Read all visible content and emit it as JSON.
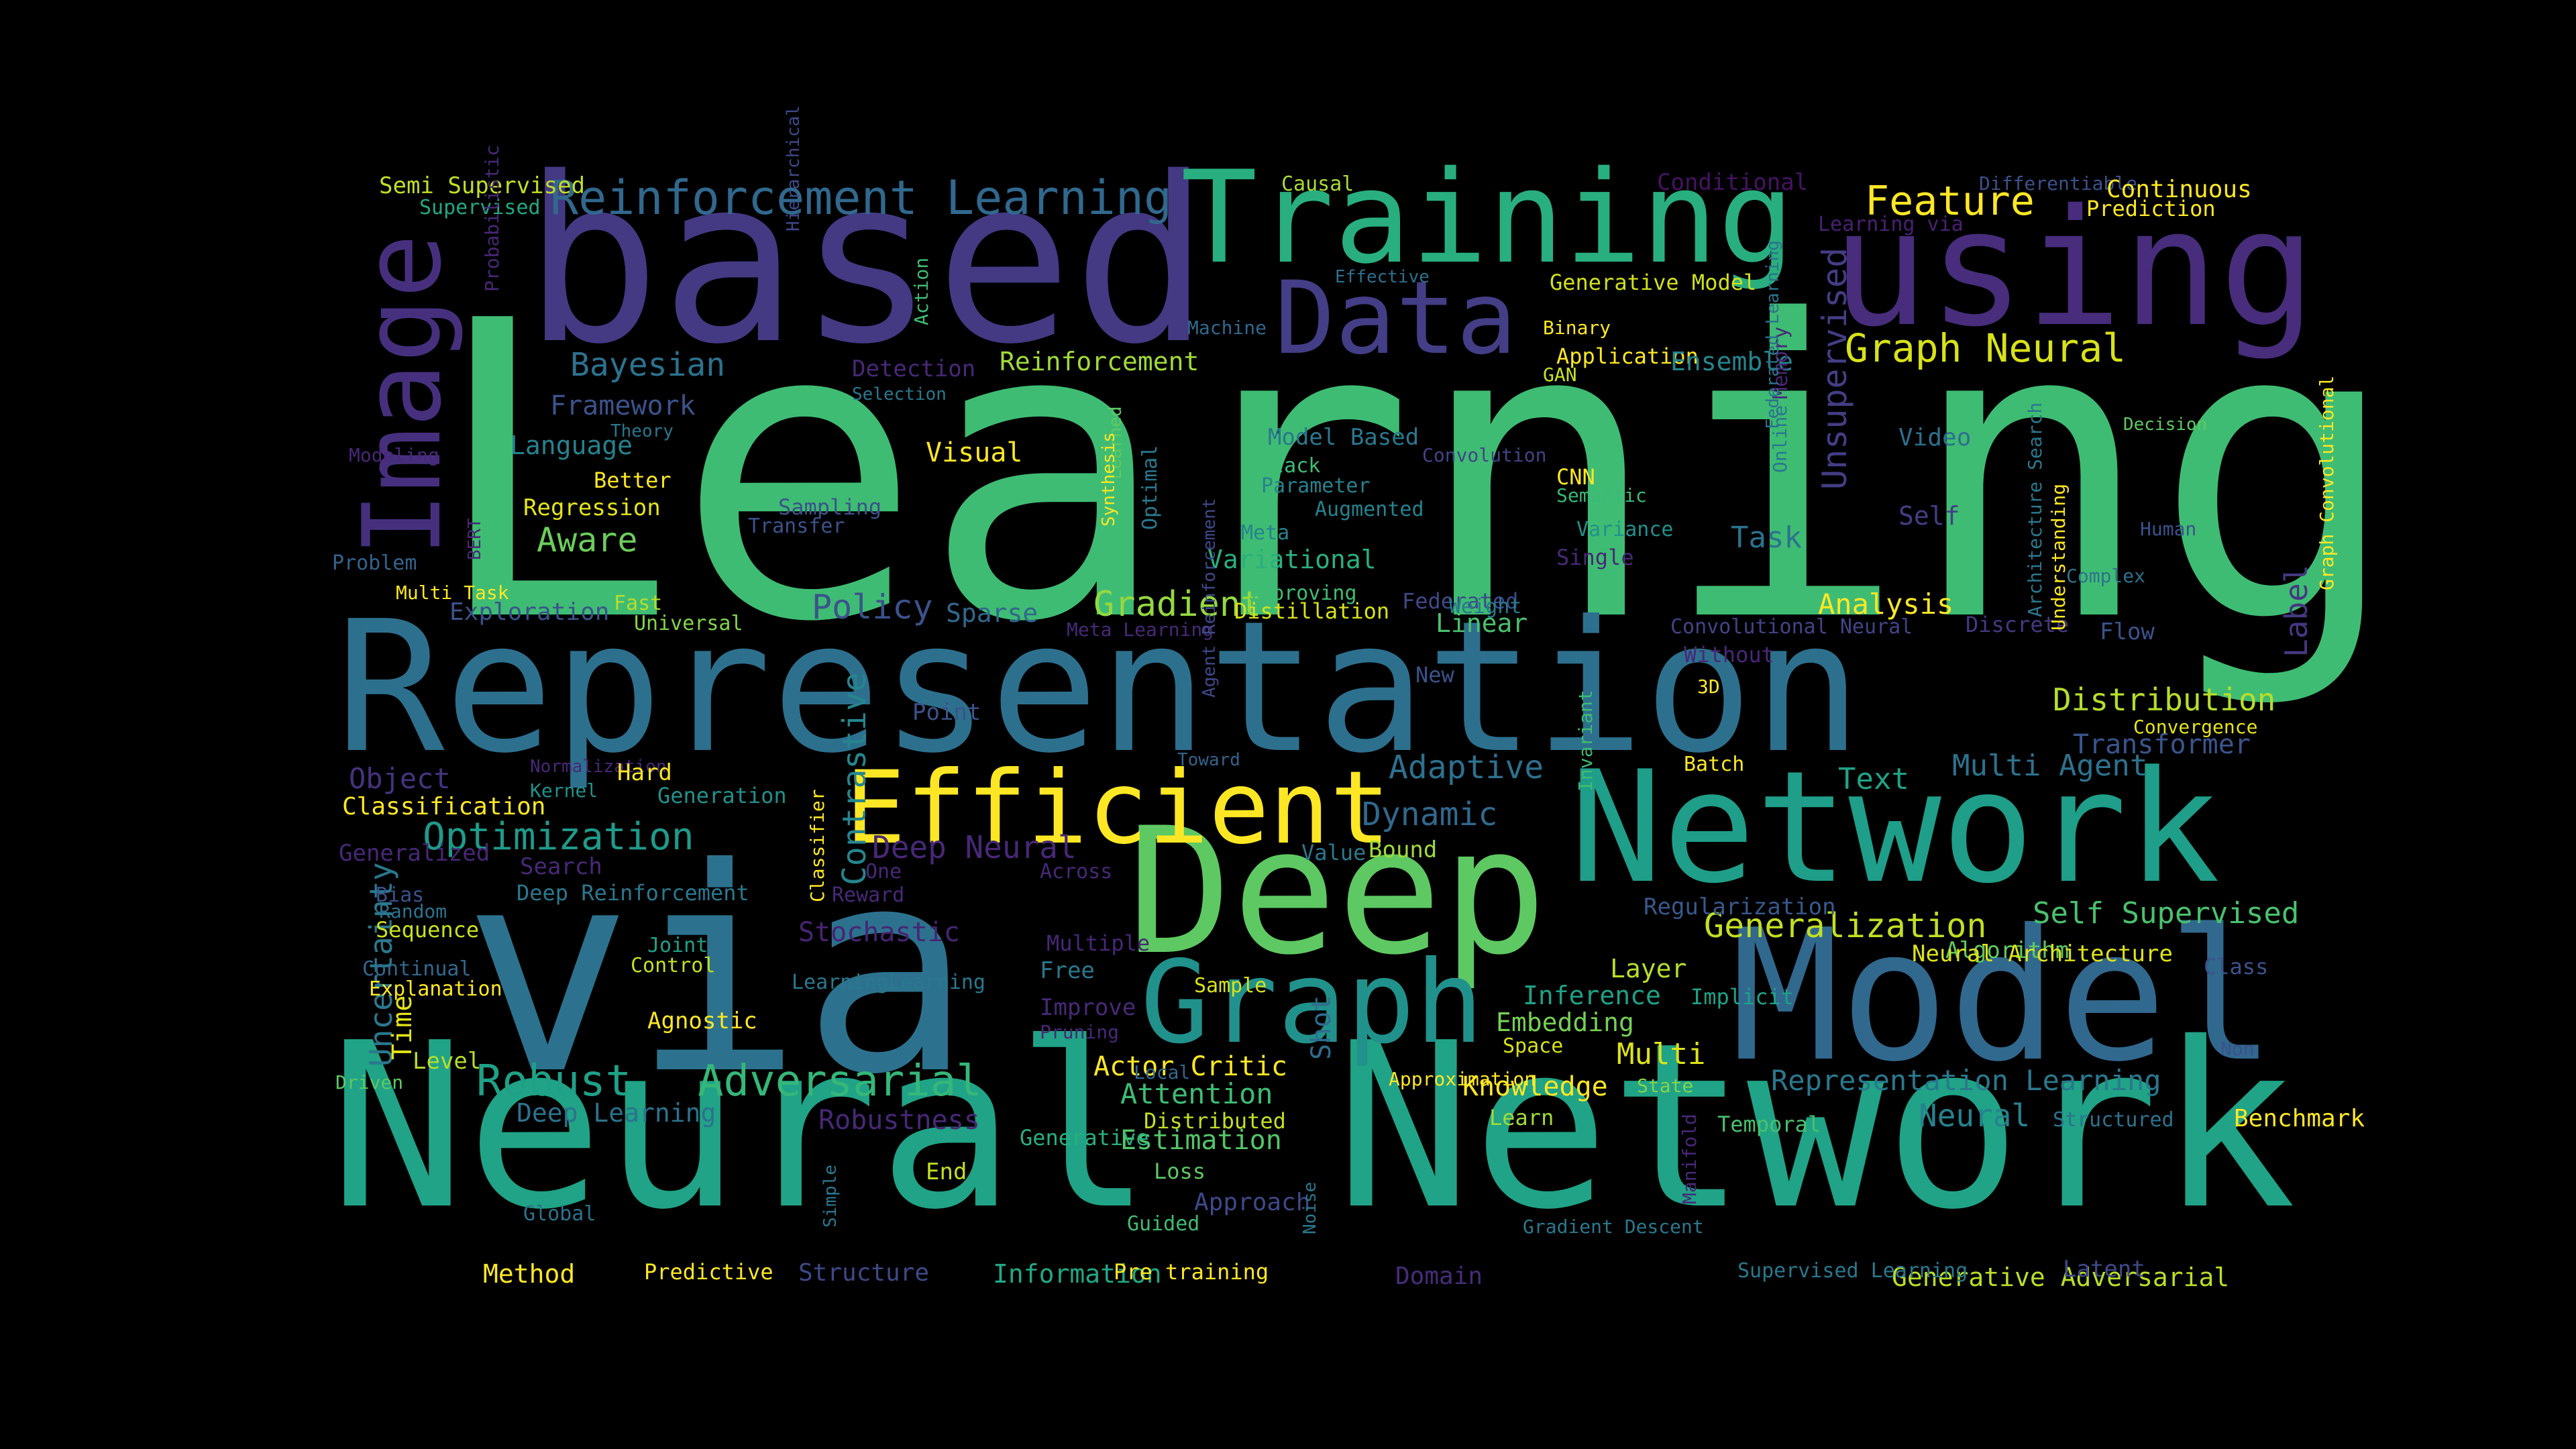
{
  "colors": {
    "background": "#000000",
    "palette": [
      "#440154",
      "#46327e",
      "#365c8d",
      "#277f8e",
      "#1fa187",
      "#4ac16d",
      "#a0da39",
      "#fde725"
    ]
  },
  "words": [
    {
      "text": "Learning",
      "color": "#3fbc73",
      "vertical": false
    },
    {
      "text": "Representation",
      "color": "#2d708e",
      "vertical": false
    },
    {
      "text": "Neural",
      "color": "#20a386",
      "vertical": false
    },
    {
      "text": "Network",
      "color": "#20a386",
      "vertical": false
    },
    {
      "text": "via",
      "color": "#2c728e",
      "vertical": false
    },
    {
      "text": "based",
      "color": "#443983",
      "vertical": false
    },
    {
      "text": "Deep",
      "color": "#5ec962",
      "vertical": false
    },
    {
      "text": "Network",
      "color": "#1f9e89",
      "vertical": false
    },
    {
      "text": "Model",
      "color": "#31688e",
      "vertical": false
    },
    {
      "text": "using",
      "color": "#472d7b",
      "vertical": false
    },
    {
      "text": "Training",
      "color": "#29af7f",
      "vertical": false
    },
    {
      "text": "Graph",
      "color": "#21918c",
      "vertical": false
    },
    {
      "text": "Image",
      "color": "#46307e",
      "vertical": true
    },
    {
      "text": "Efficient",
      "color": "#fde725",
      "vertical": false
    },
    {
      "text": "Data",
      "color": "#433e85",
      "vertical": false
    },
    {
      "text": "Reinforcement Learning",
      "color": "#31688e",
      "vertical": false
    },
    {
      "text": "Graph Neural",
      "color": "#d8e219",
      "vertical": false
    },
    {
      "text": "Feature",
      "color": "#fde725",
      "vertical": false
    },
    {
      "text": "Adversarial",
      "color": "#35b779",
      "vertical": false
    },
    {
      "text": "Robust",
      "color": "#1fa187",
      "vertical": false
    },
    {
      "text": "Optimization",
      "color": "#1f9a8a",
      "vertical": false
    },
    {
      "text": "Generalization",
      "color": "#c2df23",
      "vertical": false
    },
    {
      "text": "Distribution",
      "color": "#b5de2b",
      "vertical": false
    },
    {
      "text": "Self Supervised",
      "color": "#4ac16d",
      "vertical": false
    },
    {
      "text": "Gradient",
      "color": "#95d840",
      "vertical": false
    },
    {
      "text": "Policy",
      "color": "#3b528b",
      "vertical": false
    },
    {
      "text": "Bayesian",
      "color": "#2c728e",
      "vertical": false
    },
    {
      "text": "Aware",
      "color": "#6ccd5a",
      "vertical": false
    },
    {
      "text": "Unsupervised",
      "color": "#433e85",
      "vertical": true
    },
    {
      "text": "Analysis",
      "color": "#fde725",
      "vertical": false
    },
    {
      "text": "Multi Agent",
      "color": "#2c728e",
      "vertical": false
    },
    {
      "text": "Transformer",
      "color": "#39558c",
      "vertical": false
    },
    {
      "text": "Adaptive",
      "color": "#2d708e",
      "vertical": false
    },
    {
      "text": "Dynamic",
      "color": "#31688e",
      "vertical": false
    },
    {
      "text": "Contrastive",
      "color": "#25858e",
      "vertical": true
    },
    {
      "text": "Deep Neural",
      "color": "#482878",
      "vertical": false
    },
    {
      "text": "Label",
      "color": "#453781",
      "vertical": true
    },
    {
      "text": "Video",
      "color": "#2d708e",
      "vertical": false
    },
    {
      "text": "Self",
      "color": "#433e85",
      "vertical": false
    },
    {
      "text": "Task",
      "color": "#2c728e",
      "vertical": false
    },
    {
      "text": "Text",
      "color": "#20a386",
      "vertical": false
    },
    {
      "text": "Representation Learning",
      "color": "#2a788e",
      "vertical": false
    },
    {
      "text": "Neural",
      "color": "#26828e",
      "vertical": false
    },
    {
      "text": "Multi",
      "color": "#dde318",
      "vertical": false
    },
    {
      "text": "Knowledge",
      "color": "#fde725",
      "vertical": false
    },
    {
      "text": "Attention",
      "color": "#3dbc74",
      "vertical": false
    },
    {
      "text": "Estimation",
      "color": "#54c568",
      "vertical": false
    },
    {
      "text": "Deep Learning",
      "color": "#2c728e",
      "vertical": false
    },
    {
      "text": "Robustness",
      "color": "#482878",
      "vertical": false
    },
    {
      "text": "Object",
      "color": "#46337f",
      "vertical": false
    },
    {
      "text": "Classification",
      "color": "#fde725",
      "vertical": false
    },
    {
      "text": "Framework",
      "color": "#3b528b",
      "vertical": false
    },
    {
      "text": "Language",
      "color": "#26828e",
      "vertical": false
    },
    {
      "text": "Reinforcement",
      "color": "#a0da39",
      "vertical": false
    },
    {
      "text": "Visual",
      "color": "#fde725",
      "vertical": false
    },
    {
      "text": "Variational",
      "color": "#2ab07f",
      "vertical": false
    },
    {
      "text": "Exploration",
      "color": "#3b528b",
      "vertical": false
    },
    {
      "text": "Sparse",
      "color": "#31688e",
      "vertical": false
    },
    {
      "text": "Linear",
      "color": "#4ac16d",
      "vertical": false
    },
    {
      "text": "Layer",
      "color": "#b5de2b",
      "vertical": false
    },
    {
      "text": "Inference",
      "color": "#1fa187",
      "vertical": false
    },
    {
      "text": "Embedding",
      "color": "#75d054",
      "vertical": false
    },
    {
      "text": "Algorithm",
      "color": "#5ec962",
      "vertical": false
    },
    {
      "text": "Uncertainty",
      "color": "#2a788e",
      "vertical": true
    },
    {
      "text": "Time",
      "color": "#e2e418",
      "vertical": true
    },
    {
      "text": "Sequence",
      "color": "#c8e020",
      "vertical": false
    },
    {
      "text": "Stochastic",
      "color": "#482475",
      "vertical": false
    },
    {
      "text": "Shot",
      "color": "#2f6c8e",
      "vertical": true
    },
    {
      "text": "Approach",
      "color": "#3e4989",
      "vertical": false
    },
    {
      "text": "Method",
      "color": "#fde725",
      "vertical": false
    },
    {
      "text": "Structure",
      "color": "#3e4989",
      "vertical": false
    },
    {
      "text": "Information",
      "color": "#22a884",
      "vertical": false
    },
    {
      "text": "Domain",
      "color": "#472c7a",
      "vertical": false
    },
    {
      "text": "Generative Adversarial",
      "color": "#b8de29",
      "vertical": false
    },
    {
      "text": "Latent",
      "color": "#3e4989",
      "vertical": false
    },
    {
      "text": "Semi Supervised",
      "color": "#c0df25",
      "vertical": false
    },
    {
      "text": "Supervised",
      "color": "#22a884",
      "vertical": false
    },
    {
      "text": "Causal",
      "color": "#a8db34",
      "vertical": false
    },
    {
      "text": "Conditional",
      "color": "#471365",
      "vertical": false
    },
    {
      "text": "Differentiable",
      "color": "#3b528b",
      "vertical": false
    },
    {
      "text": "Continuous",
      "color": "#fde725",
      "vertical": false
    },
    {
      "text": "Prediction",
      "color": "#fde725",
      "vertical": false
    },
    {
      "text": "Learning via",
      "color": "#482173",
      "vertical": false
    },
    {
      "text": "Effective",
      "color": "#2d708e",
      "vertical": false
    },
    {
      "text": "Generative Model",
      "color": "#d0e11c",
      "vertical": false
    },
    {
      "text": "Machine",
      "color": "#31688e",
      "vertical": false
    },
    {
      "text": "Binary",
      "color": "#fde725",
      "vertical": false
    },
    {
      "text": "Application",
      "color": "#fde725",
      "vertical": false
    },
    {
      "text": "Ensemble",
      "color": "#25858e",
      "vertical": false
    },
    {
      "text": "GAN",
      "color": "#c8e020",
      "vertical": false
    },
    {
      "text": "Detection",
      "color": "#482878",
      "vertical": false
    },
    {
      "text": "Selection",
      "color": "#2a788e",
      "vertical": false
    },
    {
      "text": "Theory",
      "color": "#2a788e",
      "vertical": false
    },
    {
      "text": "Better",
      "color": "#fde725",
      "vertical": false
    },
    {
      "text": "Regression",
      "color": "#e5e419",
      "vertical": false
    },
    {
      "text": "Sampling",
      "color": "#3b528b",
      "vertical": false
    },
    {
      "text": "Transfer",
      "color": "#3b528b",
      "vertical": false
    },
    {
      "text": "Model Based",
      "color": "#2a788e",
      "vertical": false
    },
    {
      "text": "Attack",
      "color": "#3fbc73",
      "vertical": false
    },
    {
      "text": "Parameter",
      "color": "#25838e",
      "vertical": false
    },
    {
      "text": "Augmented",
      "color": "#25838e",
      "vertical": false
    },
    {
      "text": "Meta",
      "color": "#25838e",
      "vertical": false
    },
    {
      "text": "Convolution",
      "color": "#414487",
      "vertical": false
    },
    {
      "text": "CNN",
      "color": "#fde725",
      "vertical": false
    },
    {
      "text": "Semantic",
      "color": "#3aba76",
      "vertical": false
    },
    {
      "text": "Variance",
      "color": "#21918c",
      "vertical": false
    },
    {
      "text": "Single",
      "color": "#482878",
      "vertical": false
    },
    {
      "text": "Decision",
      "color": "#5ec962",
      "vertical": false
    },
    {
      "text": "Human",
      "color": "#3b528b",
      "vertical": false
    },
    {
      "text": "Complex",
      "color": "#2c728e",
      "vertical": false
    },
    {
      "text": "Discrete",
      "color": "#443983",
      "vertical": false
    },
    {
      "text": "Flow",
      "color": "#3b528b",
      "vertical": false
    },
    {
      "text": "Problem",
      "color": "#33638d",
      "vertical": false
    },
    {
      "text": "Multi Task",
      "color": "#fde725",
      "vertical": false
    },
    {
      "text": "Fast",
      "color": "#b5de2b",
      "vertical": false
    },
    {
      "text": "Universal",
      "color": "#84d44b",
      "vertical": false
    },
    {
      "text": "Meta Learning",
      "color": "#482878",
      "vertical": false
    },
    {
      "text": "Distillation",
      "color": "#d8e219",
      "vertical": false
    },
    {
      "text": "Improving",
      "color": "#3fbc73",
      "vertical": false
    },
    {
      "text": "Federated",
      "color": "#3e4989",
      "vertical": false
    },
    {
      "text": "Convolutional Neural",
      "color": "#414487",
      "vertical": false
    },
    {
      "text": "Without",
      "color": "#482878",
      "vertical": false
    },
    {
      "text": "3D",
      "color": "#fde725",
      "vertical": false
    },
    {
      "text": "New",
      "color": "#3b528b",
      "vertical": false
    },
    {
      "text": "Point",
      "color": "#3b528b",
      "vertical": false
    },
    {
      "text": "Toward",
      "color": "#33638d",
      "vertical": false
    },
    {
      "text": "Normalization",
      "color": "#482878",
      "vertical": false
    },
    {
      "text": "Hard",
      "color": "#fde725",
      "vertical": false
    },
    {
      "text": "Generation",
      "color": "#21918c",
      "vertical": false
    },
    {
      "text": "Kernel",
      "color": "#21918c",
      "vertical": false
    },
    {
      "text": "Batch",
      "color": "#fde725",
      "vertical": false
    },
    {
      "text": "Convergence",
      "color": "#e5e419",
      "vertical": false
    },
    {
      "text": "Generalized",
      "color": "#482878",
      "vertical": false
    },
    {
      "text": "Search",
      "color": "#482878",
      "vertical": false
    },
    {
      "text": "Deep Reinforcement",
      "color": "#2a788e",
      "vertical": false
    },
    {
      "text": "Bias",
      "color": "#3b528b",
      "vertical": false
    },
    {
      "text": "Random",
      "color": "#2c728e",
      "vertical": false
    },
    {
      "text": "One",
      "color": "#482878",
      "vertical": false
    },
    {
      "text": "Across",
      "color": "#482878",
      "vertical": false
    },
    {
      "text": "Reward",
      "color": "#482878",
      "vertical": false
    },
    {
      "text": "Value",
      "color": "#2a788e",
      "vertical": false
    },
    {
      "text": "Bound",
      "color": "#a0da39",
      "vertical": false
    },
    {
      "text": "Regularization",
      "color": "#38598c",
      "vertical": false
    },
    {
      "text": "Neural Architecture",
      "color": "#dde318",
      "vertical": false
    },
    {
      "text": "Class",
      "color": "#3b528b",
      "vertical": false
    },
    {
      "text": "Implicit",
      "color": "#1fa187",
      "vertical": false
    },
    {
      "text": "Non",
      "color": "#3b528b",
      "vertical": false
    },
    {
      "text": "Joint",
      "color": "#1fa187",
      "vertical": false
    },
    {
      "text": "Control",
      "color": "#c2df23",
      "vertical": false
    },
    {
      "text": "Continual",
      "color": "#31688e",
      "vertical": false
    },
    {
      "text": "Explanation",
      "color": "#fde725",
      "vertical": false
    },
    {
      "text": "Multiple",
      "color": "#482878",
      "vertical": false
    },
    {
      "text": "Free",
      "color": "#2a788e",
      "vertical": false
    },
    {
      "text": "Sample",
      "color": "#d8e219",
      "vertical": false
    },
    {
      "text": "LearningLearning",
      "color": "#2a788e",
      "vertical": false
    },
    {
      "text": "Improve",
      "color": "#482878",
      "vertical": false
    },
    {
      "text": "Pruning",
      "color": "#482878",
      "vertical": false
    },
    {
      "text": "Space",
      "color": "#d8e219",
      "vertical": false
    },
    {
      "text": "Agnostic",
      "color": "#fde725",
      "vertical": false
    },
    {
      "text": "Level",
      "color": "#b5de2b",
      "vertical": false
    },
    {
      "text": "Driven",
      "color": "#5ec962",
      "vertical": false
    },
    {
      "text": "Actor Critic",
      "color": "#fde725",
      "vertical": false
    },
    {
      "text": "Local",
      "color": "#31688e",
      "vertical": false
    },
    {
      "text": "Approximation",
      "color": "#fde725",
      "vertical": false
    },
    {
      "text": "State",
      "color": "#84d44b",
      "vertical": false
    },
    {
      "text": "Distributed",
      "color": "#c2df23",
      "vertical": false
    },
    {
      "text": "Generative",
      "color": "#29af7f",
      "vertical": false
    },
    {
      "text": "Learn",
      "color": "#a0da39",
      "vertical": false
    },
    {
      "text": "Temporal",
      "color": "#4ac16d",
      "vertical": false
    },
    {
      "text": "Structured",
      "color": "#2c728e",
      "vertical": false
    },
    {
      "text": "Benchmark",
      "color": "#fde725",
      "vertical": false
    },
    {
      "text": "End",
      "color": "#c2df23",
      "vertical": false
    },
    {
      "text": "Loss",
      "color": "#5ec962",
      "vertical": false
    },
    {
      "text": "Global",
      "color": "#2c728e",
      "vertical": false
    },
    {
      "text": "Guided",
      "color": "#3fbc73",
      "vertical": false
    },
    {
      "text": "Gradient Descent",
      "color": "#2a788e",
      "vertical": false
    },
    {
      "text": "Predictive",
      "color": "#fde725",
      "vertical": false
    },
    {
      "text": "Pre training",
      "color": "#fde725",
      "vertical": false
    },
    {
      "text": "Supervised Learning",
      "color": "#2a788e",
      "vertical": false
    },
    {
      "text": "Modeling",
      "color": "#482878",
      "vertical": false
    },
    {
      "text": "Probabilistic",
      "color": "#482878",
      "vertical": true
    },
    {
      "text": "Action",
      "color": "#3fbc73",
      "vertical": true
    },
    {
      "text": "Hierarchical",
      "color": "#3e4989",
      "vertical": true
    },
    {
      "text": "BERT",
      "color": "#482878",
      "vertical": true
    },
    {
      "text": "Learned",
      "color": "#5ec962",
      "vertical": true
    },
    {
      "text": "Synthesis",
      "color": "#fde725",
      "vertical": true
    },
    {
      "text": "Optimal",
      "color": "#2a788e",
      "vertical": true
    },
    {
      "text": "Weight",
      "color": "#2a788e",
      "vertical": false
    },
    {
      "text": "Memory",
      "color": "#482878",
      "vertical": true
    },
    {
      "text": "Online",
      "color": "#2a788e",
      "vertical": true
    },
    {
      "text": "Federated Learning",
      "color": "#2c728e",
      "vertical": true
    },
    {
      "text": "Architecture Search",
      "color": "#2a788e",
      "vertical": true
    },
    {
      "text": "Understanding",
      "color": "#fde725",
      "vertical": true
    },
    {
      "text": "Graph Convolutional",
      "color": "#fde725",
      "vertical": true
    },
    {
      "text": "Invariant",
      "color": "#3fbc73",
      "vertical": true
    },
    {
      "text": "Classifier",
      "color": "#fde725",
      "vertical": true
    },
    {
      "text": "Agent Reinforcement",
      "color": "#3e4989",
      "vertical": true
    },
    {
      "text": "Simple",
      "color": "#2a788e",
      "vertical": true
    },
    {
      "text": "Noise",
      "color": "#2a788e",
      "vertical": true
    },
    {
      "text": "Manifold",
      "color": "#482878",
      "vertical": true
    },
    {
      "text": "SGD",
      "color": "#fde725",
      "vertical": true
    }
  ]
}
